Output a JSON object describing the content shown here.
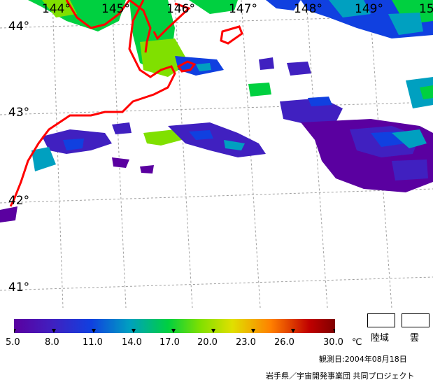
{
  "map": {
    "longitude_labels": [
      "144°",
      "145°",
      "146°",
      "147°",
      "148°",
      "149°",
      "15"
    ],
    "latitude_labels": [
      "44°",
      "43°",
      "42°",
      "41°"
    ]
  },
  "legend": {
    "ticks": [
      "5.0",
      "8.0",
      "11.0",
      "14.0",
      "17.0",
      "20.0",
      "23.0",
      "26.0",
      "30.0"
    ],
    "unit": "℃",
    "colors": [
      "#5a00a0",
      "#4020c0",
      "#1040e0",
      "#00a0c0",
      "#00d040",
      "#80e000",
      "#e0e000",
      "#ff8000",
      "#c00000",
      "#800000"
    ],
    "land_label": "陸域",
    "cloud_label": "雲"
  },
  "footer": {
    "observation_date": "観測日:2004年08月18日",
    "credit": "岩手県／宇宙開発事業団 共同プロジェクト"
  },
  "colors": {
    "coastline": "#ff0000",
    "grid": "#a0a0a0",
    "background": "#ffffff"
  }
}
